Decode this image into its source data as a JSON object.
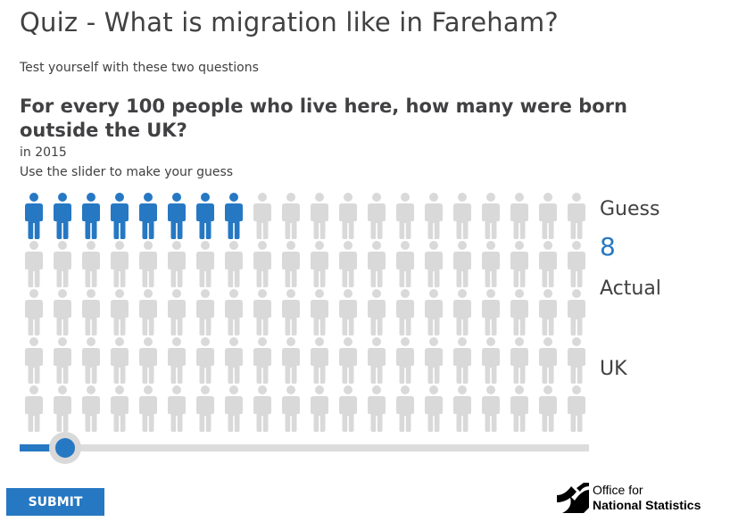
{
  "header": {
    "title": "Quiz - What is migration like in Fareham?",
    "subtitle": "Test yourself with these two questions"
  },
  "question": {
    "text": "For every 100 people who live here, how many were born outside the UK?",
    "year": "in 2015",
    "instruction": "Use the slider to make your guess"
  },
  "pictogram": {
    "total": 100,
    "columns": 20,
    "rows": 5,
    "filled": 8,
    "filled_color": "#2678c3",
    "empty_color": "#d9d9d9",
    "icon": "person-icon"
  },
  "stats": {
    "guess_label": "Guess",
    "guess_value": "8",
    "actual_label": "Actual",
    "uk_label": "UK"
  },
  "slider": {
    "min": 0,
    "max": 100,
    "value": 8,
    "accent_color": "#2678c3"
  },
  "submit": {
    "label": "SUBMIT"
  },
  "logo": {
    "line1": "Office for",
    "line2": "National Statistics",
    "icon": "ons-logo-icon"
  }
}
